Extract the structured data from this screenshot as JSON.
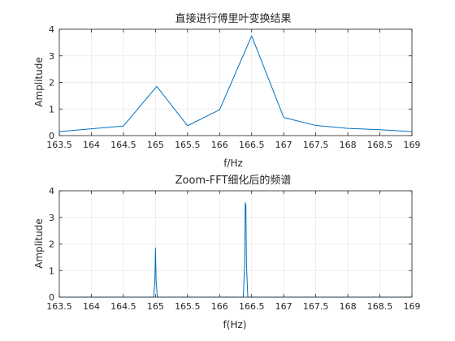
{
  "chart_data": [
    {
      "type": "line",
      "title": "直接进行傅里叶变换结果",
      "xlabel": "f/Hz",
      "ylabel": "Amplitude",
      "xlim": [
        163.5,
        169
      ],
      "ylim": [
        0,
        4
      ],
      "grid": true,
      "xticks": [
        163.5,
        164,
        164.5,
        165,
        165.5,
        166,
        166.5,
        167,
        167.5,
        168,
        168.5,
        169
      ],
      "yticks": [
        0,
        1,
        2,
        3,
        4
      ],
      "series": [
        {
          "color": "#0072BD",
          "x": [
            163.5,
            164.5,
            165.02,
            165.5,
            166,
            166.5,
            167,
            167.5,
            168,
            168.5,
            169
          ],
          "y": [
            0.15,
            0.36,
            1.85,
            0.37,
            0.97,
            3.75,
            0.68,
            0.38,
            0.27,
            0.22,
            0.15
          ]
        }
      ]
    },
    {
      "type": "line",
      "title": "Zoom-FFT细化后的频谱",
      "xlabel": "f(Hz)",
      "ylabel": "Amplitude",
      "xlim": [
        163.5,
        169
      ],
      "ylim": [
        0,
        4
      ],
      "grid": true,
      "xticks": [
        163.5,
        164,
        164.5,
        165,
        165.5,
        166,
        166.5,
        167,
        167.5,
        168,
        168.5,
        169
      ],
      "yticks": [
        0,
        1,
        2,
        3,
        4
      ],
      "series": [
        {
          "color": "#0072BD",
          "x": [
            163.5,
            164.97,
            164.99,
            165.0,
            165.01,
            165.03,
            166.37,
            166.39,
            166.4,
            166.41,
            166.42,
            166.44,
            169
          ],
          "y": [
            0,
            0,
            0.6,
            1.85,
            0.6,
            0,
            0,
            1.2,
            3.55,
            3.45,
            1.2,
            0,
            0
          ]
        }
      ]
    }
  ]
}
